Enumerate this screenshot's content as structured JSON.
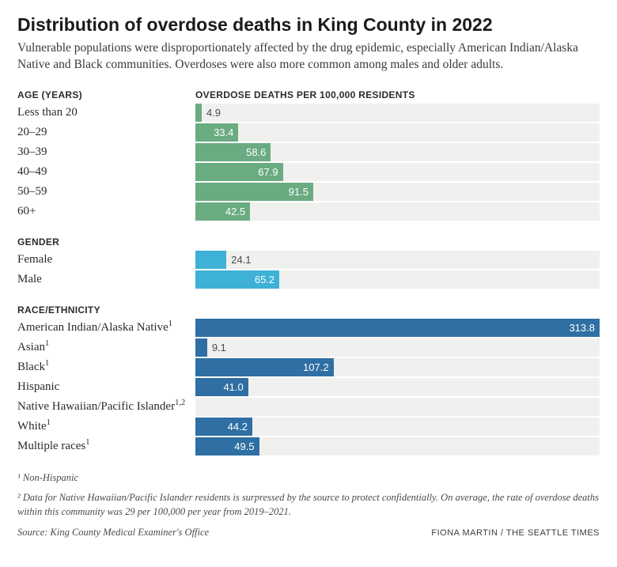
{
  "title": "Distribution of overdose deaths in King County in 2022",
  "subtitle": "Vulnerable populations were disproportionately affected by the drug epidemic, especially American Indian/Alaska Native and Black communities. Overdoses were also more common among males and older adults.",
  "axis_label": "OVERDOSE DEATHS PER 100,000 RESIDENTS",
  "x_max": 313.8,
  "track_color": "#f0f0ef",
  "text_color_inside": "#ffffff",
  "text_color_outside": "#4a4a4a",
  "label_fontsize": 15,
  "value_fontsize": 13,
  "value_outside_threshold": 30,
  "sections": [
    {
      "header": "AGE (YEARS)",
      "color": "#6aab82",
      "rows": [
        {
          "label": "Less than 20",
          "value": 4.9,
          "display": "4.9"
        },
        {
          "label": "20–29",
          "value": 33.4,
          "display": "33.4"
        },
        {
          "label": "30–39",
          "value": 58.6,
          "display": "58.6"
        },
        {
          "label": "40–49",
          "value": 67.9,
          "display": "67.9"
        },
        {
          "label": "50–59",
          "value": 91.5,
          "display": "91.5"
        },
        {
          "label": "60+",
          "value": 42.5,
          "display": "42.5"
        }
      ]
    },
    {
      "header": "GENDER",
      "color": "#3eb1d6",
      "rows": [
        {
          "label": "Female",
          "value": 24.1,
          "display": "24.1"
        },
        {
          "label": "Male",
          "value": 65.2,
          "display": "65.2"
        }
      ]
    },
    {
      "header": "RACE/ETHNICITY",
      "color": "#2f6fa3",
      "rows": [
        {
          "label": "American Indian/Alaska Native",
          "sup": "1",
          "value": 313.8,
          "display": "313.8"
        },
        {
          "label": "Asian",
          "sup": "1",
          "value": 9.1,
          "display": "9.1"
        },
        {
          "label": "Black",
          "sup": "1",
          "value": 107.2,
          "display": "107.2"
        },
        {
          "label": "Hispanic",
          "sup": "",
          "value": 41.0,
          "display": "41.0"
        },
        {
          "label": "Native Hawaiian/Pacific Islander",
          "sup": "1,2",
          "value": null,
          "display": ""
        },
        {
          "label": "White",
          "sup": "1",
          "value": 44.2,
          "display": "44.2"
        },
        {
          "label": "Multiple races",
          "sup": "1",
          "value": 49.5,
          "display": "49.5"
        }
      ]
    }
  ],
  "footnotes": [
    "¹ Non-Hispanic",
    "² Data for Native Hawaiian/Pacific Islander residents is surpressed by the source to protect confidentially. On average, the rate of overdose deaths within this community was 29 per 100,000 per year from 2019–2021."
  ],
  "source": "Source: King County Medical Examiner's Office",
  "credit": "FIONA MARTIN / THE SEATTLE TIMES"
}
